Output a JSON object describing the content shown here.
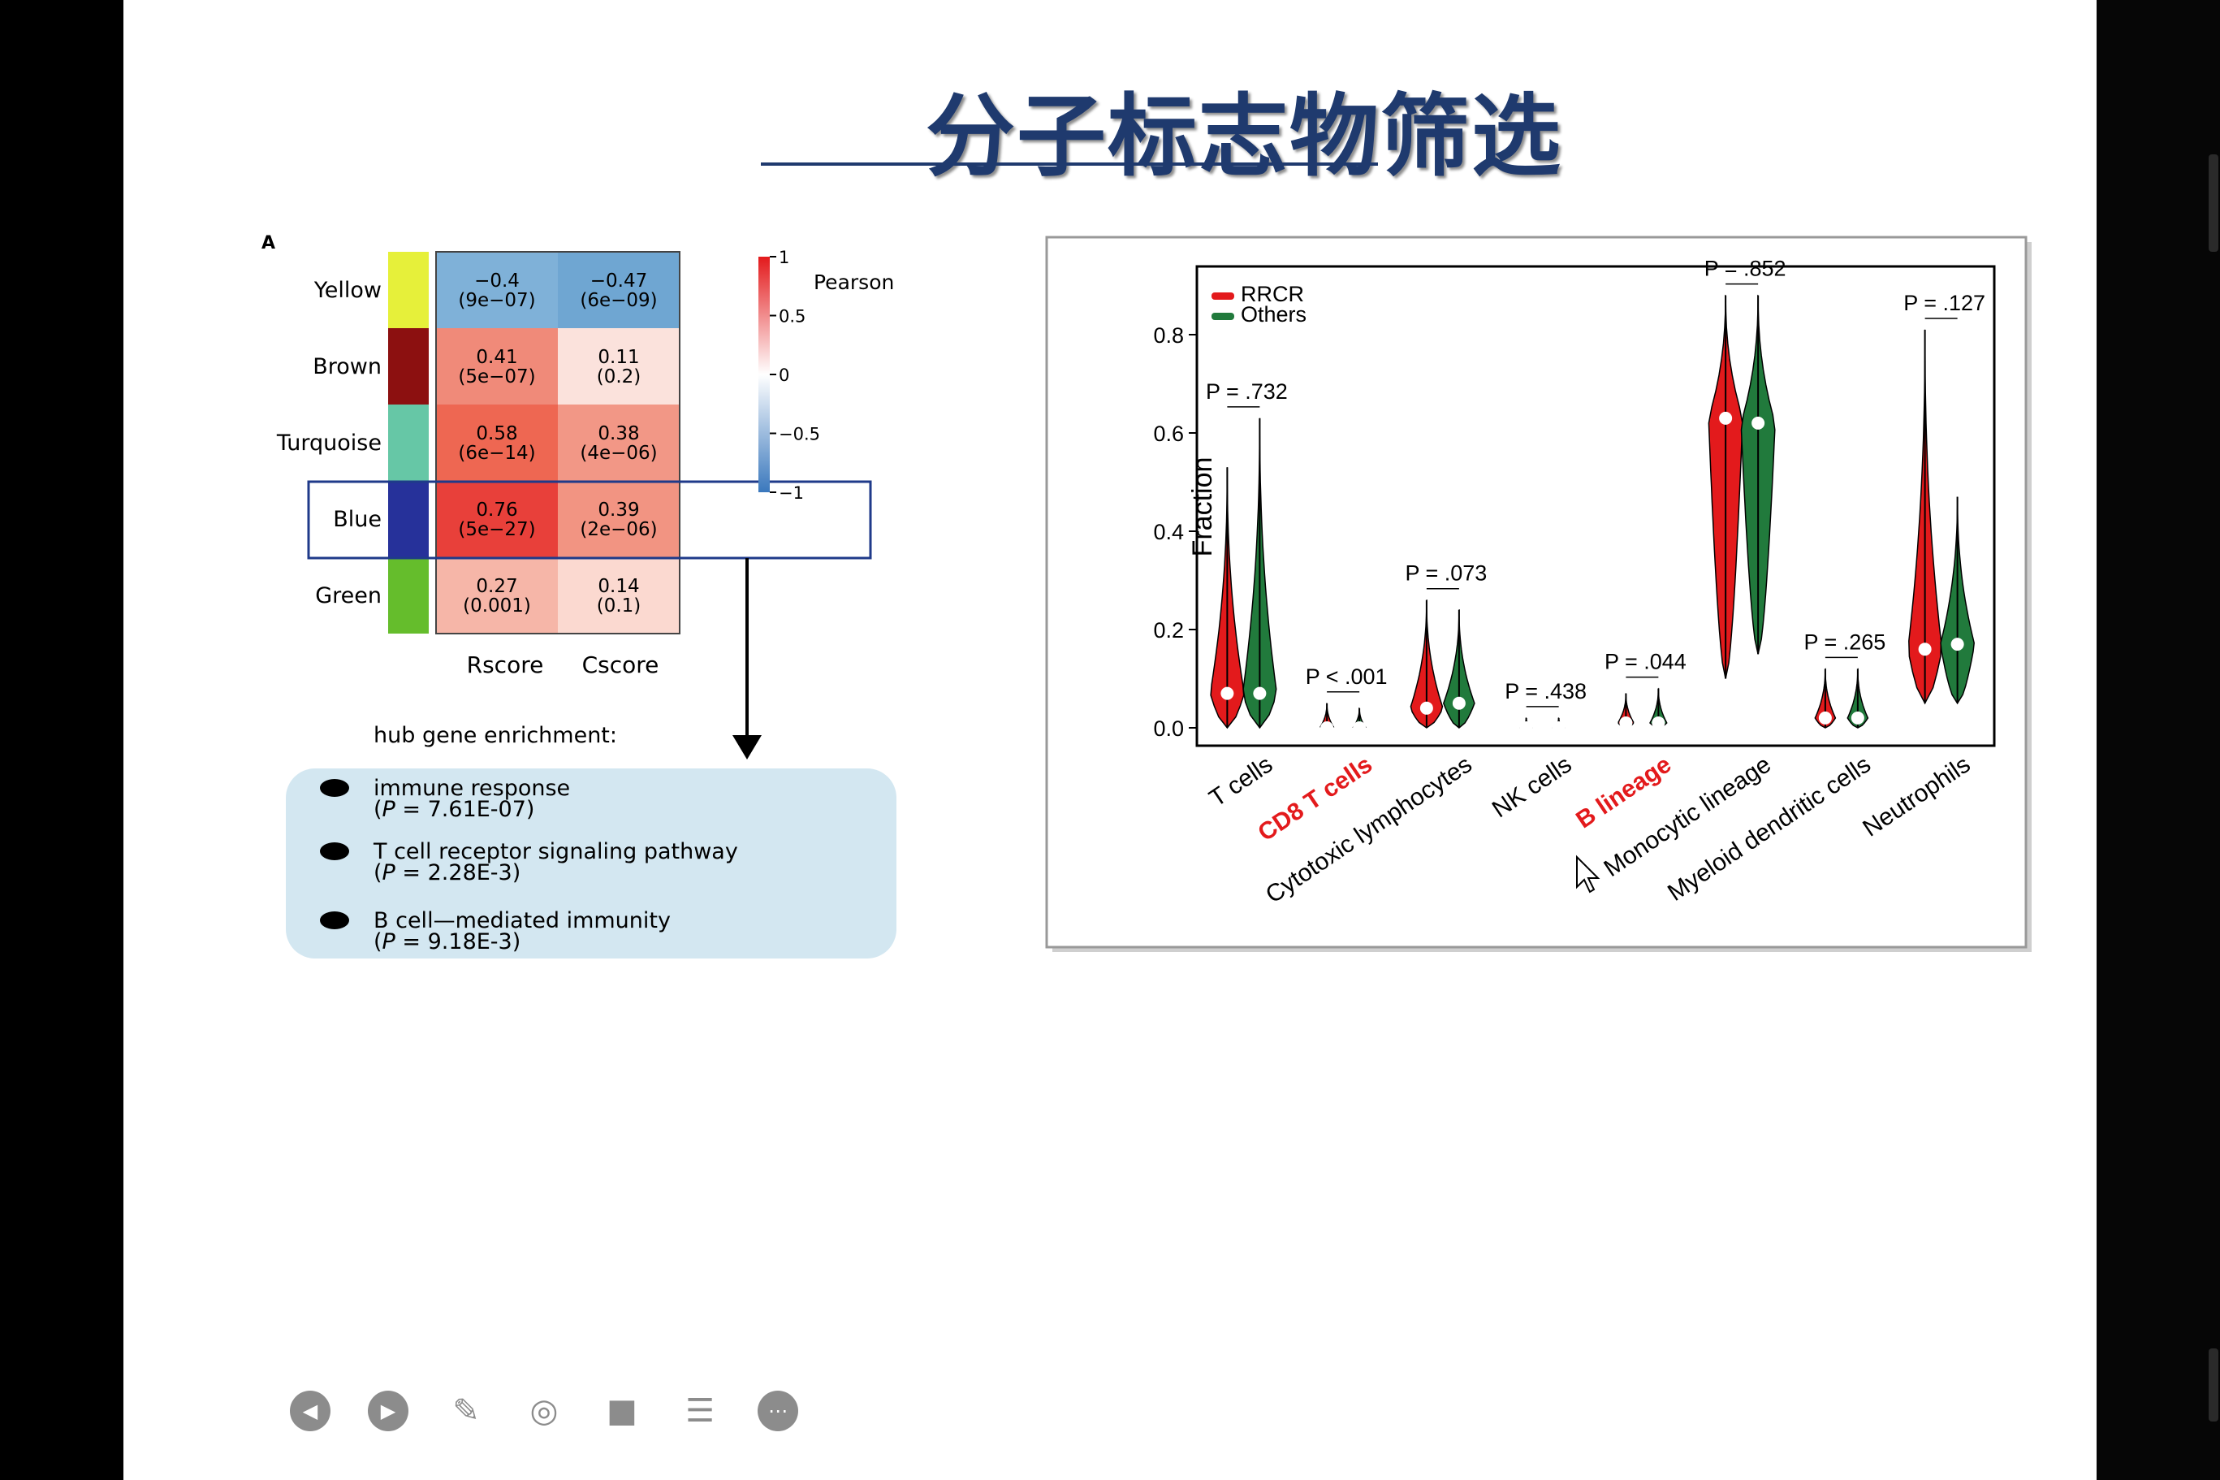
{
  "slide_title": "分子标志物筛选",
  "panel_a": {
    "label": "A",
    "modules": [
      {
        "name": "Yellow",
        "color": "#e6f03a",
        "rscore": "−0.4",
        "rscore_p": "(9e−07)",
        "cscore": "−0.47",
        "cscore_p": "(6e−09)",
        "rfill": "#7fb1d8",
        "cfill": "#6fa6d2"
      },
      {
        "name": "Brown",
        "color": "#8c1010",
        "rscore": "0.41",
        "rscore_p": "(5e−07)",
        "cscore": "0.11",
        "cscore_p": "(0.2)",
        "rfill": "#f08a79",
        "cfill": "#fbe2dc"
      },
      {
        "name": "Turquoise",
        "color": "#66c7a6",
        "rscore": "0.58",
        "rscore_p": "(6e−14)",
        "cscore": "0.38",
        "cscore_p": "(4e−06)",
        "rfill": "#ee6752",
        "cfill": "#f29786"
      },
      {
        "name": "Blue",
        "color": "#26319a",
        "rscore": "0.76",
        "rscore_p": "(5e−27)",
        "cscore": "0.39",
        "cscore_p": "(2e−06)",
        "rfill": "#e8403a",
        "cfill": "#f29482"
      },
      {
        "name": "Green",
        "color": "#65bd2c",
        "rscore": "0.27",
        "rscore_p": "(0.001)",
        "cscore": "0.14",
        "cscore_p": "(0.1)",
        "rfill": "#f6b6a8",
        "cfill": "#fbd9d0"
      }
    ],
    "columns": [
      "Rscore",
      "Cscore"
    ],
    "legend_title": "Pearson",
    "legend_ticks": [
      "1",
      "0.5",
      "0",
      "−0.5",
      "−1"
    ],
    "enrichment_title": "hub gene enrichment:",
    "enrichment_items": [
      {
        "label": "immune response",
        "p_prefix": "(",
        "p_symbol": "P",
        "p_value": " = 7.61E-07)"
      },
      {
        "label": "T cell receptor signaling pathway",
        "p_prefix": "(",
        "p_symbol": "P",
        "p_value": " = 2.28E-3)"
      },
      {
        "label": "B cell—mediated immunity",
        "p_prefix": "(",
        "p_symbol": "P",
        "p_value": " = 9.18E-3)"
      }
    ]
  },
  "chart_data": {
    "type": "violin",
    "ylabel": "Fraction",
    "ylim": [
      0,
      0.9
    ],
    "yticks": [
      "0.0",
      "0.2",
      "0.4",
      "0.6",
      "0.8"
    ],
    "legend": [
      {
        "name": "RRCR",
        "color": "#e31a1c"
      },
      {
        "name": "Others",
        "color": "#217a3c"
      }
    ],
    "categories": [
      {
        "name": "T cells",
        "highlight": false,
        "p_label": "P = .732",
        "rrcr": {
          "median": 0.07,
          "max": 0.53,
          "min": 0.0
        },
        "others": {
          "median": 0.07,
          "max": 0.63,
          "min": 0.0
        }
      },
      {
        "name": "CD8 T cells",
        "highlight": true,
        "p_label": "P < .001",
        "rrcr": {
          "median": 0.0,
          "max": 0.05,
          "min": 0.0
        },
        "others": {
          "median": 0.0,
          "max": 0.04,
          "min": 0.0
        }
      },
      {
        "name": "Cytotoxic lymphocytes",
        "highlight": false,
        "p_label": "P = .073",
        "rrcr": {
          "median": 0.04,
          "max": 0.26,
          "min": 0.0
        },
        "others": {
          "median": 0.05,
          "max": 0.24,
          "min": 0.0
        }
      },
      {
        "name": "NK cells",
        "highlight": false,
        "p_label": "P = .438",
        "rrcr": {
          "median": 0.0,
          "max": 0.02,
          "min": 0.0
        },
        "others": {
          "median": 0.0,
          "max": 0.02,
          "min": 0.0
        }
      },
      {
        "name": "B lineage",
        "highlight": true,
        "p_label": "P = .044",
        "rrcr": {
          "median": 0.01,
          "max": 0.07,
          "min": 0.0
        },
        "others": {
          "median": 0.01,
          "max": 0.08,
          "min": 0.0
        }
      },
      {
        "name": "Monocytic lineage",
        "highlight": false,
        "p_label": "P = .852",
        "rrcr": {
          "median": 0.63,
          "max": 0.88,
          "min": 0.1
        },
        "others": {
          "median": 0.62,
          "max": 0.88,
          "min": 0.15
        }
      },
      {
        "name": "Myeloid dendritic cells",
        "highlight": false,
        "p_label": "P = .265",
        "rrcr": {
          "median": 0.02,
          "max": 0.12,
          "min": 0.0
        },
        "others": {
          "median": 0.02,
          "max": 0.12,
          "min": 0.0
        }
      },
      {
        "name": "Neutrophils",
        "highlight": false,
        "p_label": "P = .127",
        "rrcr": {
          "median": 0.16,
          "max": 0.81,
          "min": 0.05
        },
        "others": {
          "median": 0.17,
          "max": 0.47,
          "min": 0.05
        }
      }
    ]
  },
  "toolbar": [
    {
      "name": "previous-slide-button",
      "glyph": "◀"
    },
    {
      "name": "next-slide-button",
      "glyph": "▶"
    },
    {
      "name": "pen-button",
      "glyph": "✎"
    },
    {
      "name": "screenshot-button",
      "glyph": "◎"
    },
    {
      "name": "camera-button",
      "glyph": "■"
    },
    {
      "name": "comment-button",
      "glyph": "☰"
    },
    {
      "name": "more-button",
      "glyph": "⋯"
    }
  ]
}
